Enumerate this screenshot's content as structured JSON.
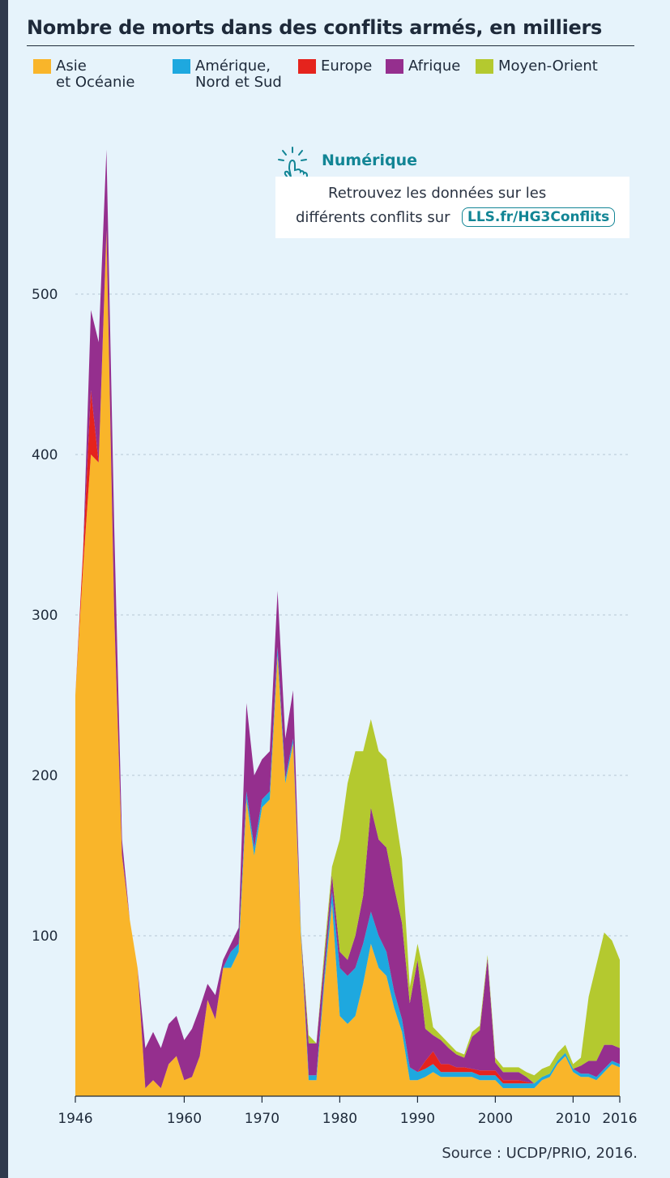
{
  "title": "Nombre de morts dans des conflits armés, en milliers",
  "legend": [
    {
      "label": "Asie\net Océanie",
      "color": "#f9b52a"
    },
    {
      "label": "Amérique,\nNord et Sud",
      "color": "#1ea8df"
    },
    {
      "label": "Europe",
      "color": "#e5231d"
    },
    {
      "label": "Afrique",
      "color": "#952f8e"
    },
    {
      "label": "Moyen-Orient",
      "color": "#b4c92f"
    }
  ],
  "callout": {
    "title": "Numérique",
    "line1": "Retrouvez les données sur les",
    "line2": "différents conflits sur",
    "link": "LLS.fr/HG3Conflits",
    "icon": "hand-pointer-icon"
  },
  "source": "Source : UCDP/PRIO, 2016.",
  "chart_data": {
    "type": "area",
    "stacked": true,
    "title": "Nombre de morts dans des conflits armés, en milliers",
    "xlim": [
      1946,
      2016
    ],
    "ylim": [
      0,
      590
    ],
    "x_ticks": [
      1946,
      1960,
      1970,
      1980,
      1990,
      2000,
      2010,
      2016
    ],
    "y_ticks": [
      100,
      200,
      300,
      400,
      500
    ],
    "grid": "horizontal dashed",
    "legend_position": "top",
    "x": [
      1946,
      1947,
      1948,
      1949,
      1950,
      1951,
      1952,
      1953,
      1954,
      1955,
      1956,
      1957,
      1958,
      1959,
      1960,
      1961,
      1962,
      1963,
      1964,
      1965,
      1966,
      1967,
      1968,
      1969,
      1970,
      1971,
      1972,
      1973,
      1974,
      1975,
      1976,
      1977,
      1978,
      1979,
      1980,
      1981,
      1982,
      1983,
      1984,
      1985,
      1986,
      1987,
      1988,
      1989,
      1990,
      1991,
      1992,
      1993,
      1994,
      1995,
      1996,
      1997,
      1998,
      1999,
      2000,
      2001,
      2002,
      2003,
      2004,
      2005,
      2006,
      2007,
      2008,
      2009,
      2010,
      2011,
      2012,
      2013,
      2014,
      2015,
      2016
    ],
    "series": [
      {
        "name": "Asie\net Océanie",
        "values": [
          250,
          330,
          400,
          395,
          540,
          300,
          150,
          110,
          80,
          5,
          10,
          5,
          20,
          25,
          10,
          12,
          25,
          60,
          48,
          80,
          80,
          90,
          185,
          150,
          180,
          185,
          275,
          195,
          220,
          100,
          10,
          10,
          70,
          120,
          50,
          45,
          50,
          70,
          95,
          80,
          75,
          55,
          40,
          10,
          10,
          12,
          15,
          12,
          12,
          12,
          12,
          12,
          10,
          10,
          10,
          5,
          5,
          5,
          5,
          5,
          10,
          12,
          20,
          25,
          15,
          12,
          12,
          10,
          15,
          20,
          18
        ]
      },
      {
        "name": "Amérique,\nNord et Sud",
        "values": [
          0,
          0,
          0,
          0,
          0,
          0,
          0,
          0,
          0,
          0,
          0,
          0,
          0,
          0,
          0,
          0,
          0,
          0,
          0,
          0,
          10,
          5,
          5,
          5,
          5,
          5,
          5,
          3,
          3,
          3,
          3,
          3,
          5,
          8,
          30,
          30,
          30,
          25,
          20,
          20,
          15,
          10,
          8,
          8,
          5,
          5,
          5,
          3,
          3,
          3,
          3,
          3,
          3,
          3,
          3,
          3,
          3,
          3,
          3,
          3,
          2,
          2,
          2,
          2,
          2,
          2,
          2,
          2,
          2,
          2,
          2
        ]
      },
      {
        "name": "Europe",
        "values": [
          0,
          10,
          40,
          0,
          0,
          0,
          0,
          0,
          0,
          0,
          0,
          0,
          0,
          0,
          0,
          0,
          0,
          0,
          0,
          0,
          0,
          0,
          0,
          0,
          0,
          0,
          0,
          0,
          0,
          0,
          0,
          0,
          0,
          0,
          0,
          0,
          0,
          0,
          0,
          0,
          0,
          0,
          0,
          0,
          0,
          5,
          8,
          5,
          5,
          3,
          3,
          2,
          3,
          3,
          3,
          2,
          2,
          2,
          1,
          0,
          0,
          0,
          0,
          0,
          0,
          0,
          0,
          0,
          0,
          0,
          0
        ]
      },
      {
        "name": "Afrique",
        "values": [
          0,
          0,
          50,
          75,
          50,
          55,
          10,
          0,
          0,
          25,
          30,
          25,
          25,
          25,
          25,
          30,
          30,
          10,
          15,
          5,
          5,
          10,
          55,
          45,
          25,
          25,
          35,
          25,
          30,
          0,
          20,
          20,
          10,
          10,
          10,
          10,
          20,
          30,
          65,
          60,
          65,
          65,
          60,
          40,
          70,
          20,
          10,
          15,
          10,
          8,
          6,
          20,
          25,
          70,
          5,
          5,
          5,
          5,
          3,
          0,
          0,
          0,
          0,
          0,
          0,
          5,
          8,
          10,
          15,
          10,
          10
        ]
      },
      {
        "name": "Moyen-Orient",
        "values": [
          0,
          0,
          0,
          0,
          0,
          0,
          0,
          0,
          0,
          0,
          0,
          0,
          0,
          0,
          0,
          0,
          0,
          0,
          0,
          0,
          0,
          0,
          0,
          0,
          0,
          0,
          0,
          0,
          0,
          0,
          5,
          0,
          5,
          5,
          70,
          110,
          115,
          90,
          55,
          55,
          55,
          50,
          40,
          10,
          10,
          30,
          5,
          3,
          3,
          2,
          2,
          3,
          3,
          2,
          3,
          3,
          3,
          3,
          3,
          5,
          5,
          5,
          5,
          5,
          3,
          5,
          40,
          60,
          70,
          65,
          55
        ]
      }
    ]
  }
}
